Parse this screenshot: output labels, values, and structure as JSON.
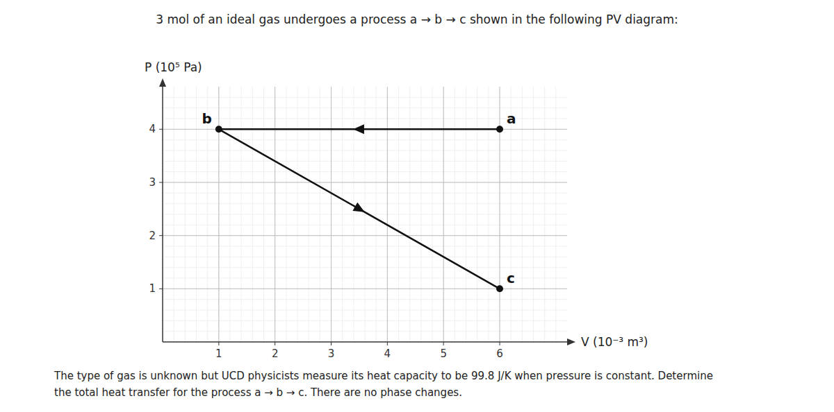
{
  "chart_data": {
    "type": "line",
    "title": "3 mol of an ideal gas undergoes a process a → b → c shown in the following PV diagram:",
    "xlabel": "V (10⁻³ m³)",
    "ylabel": "P (10⁵ Pa)",
    "xlim": [
      0,
      7.2
    ],
    "ylim": [
      0,
      4.8
    ],
    "xticks": [
      1,
      2,
      3,
      4,
      5,
      6
    ],
    "yticks": [
      1,
      2,
      3,
      4
    ],
    "grid": true,
    "series": [
      {
        "x": [
          6,
          1,
          6
        ],
        "values": [
          4,
          4,
          1
        ],
        "point_labels": [
          "a",
          "b",
          "c"
        ],
        "color": "#111111",
        "marker": "circle"
      }
    ],
    "annotations": [
      "The type of gas is unknown but UCD physicists measure its heat capacity to be 99.8 J/K when pressure is constant.  Determine",
      "the total heat transfer for the process a → b → c.  There are no phase changes."
    ]
  }
}
